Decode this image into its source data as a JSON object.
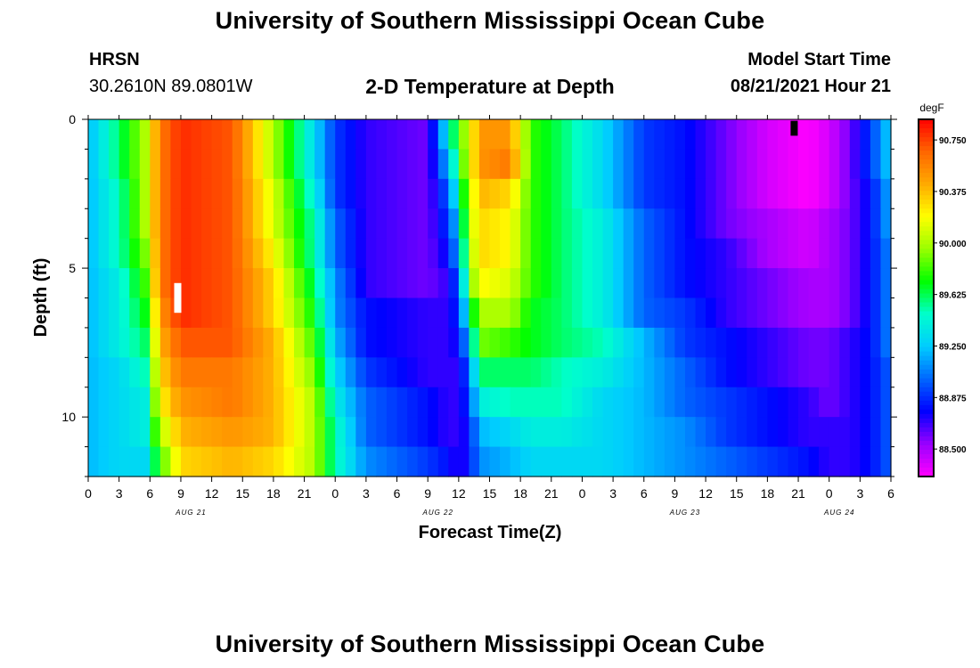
{
  "header": {
    "title": "University of Southern Mississippi Ocean Cube",
    "station": "HRSN",
    "coords": "30.2610N  89.0801W",
    "subtitle": "2-D Temperature at Depth",
    "model_start_label": "Model Start Time",
    "model_start_value": "08/21/2021 Hour 21"
  },
  "footer": {
    "title": "University of Southern Mississippi Ocean Cube"
  },
  "chart_data": {
    "type": "heatmap",
    "xlabel": "Forecast Time(Z)",
    "ylabel": "Depth (ft)",
    "x_hours": [
      0,
      3,
      6,
      9,
      12,
      15,
      18,
      21,
      0,
      3,
      6,
      9,
      12,
      15,
      18,
      21,
      0,
      3,
      6,
      9,
      12,
      15,
      18,
      21,
      0,
      3,
      6
    ],
    "date_labels": [
      {
        "label": "AUG 21",
        "hours_from_start": 10
      },
      {
        "label": "AUG 22",
        "hours_from_start": 34
      },
      {
        "label": "AUG 23",
        "hours_from_start": 58
      },
      {
        "label": "AUG 24",
        "hours_from_start": 73
      }
    ],
    "xlim_hours": [
      0,
      78
    ],
    "ylim_ft": [
      0,
      12
    ],
    "y_ticks_labeled": [
      0,
      5,
      10
    ],
    "colorbar": {
      "unit": "degF",
      "tick_labels": [
        "90.750",
        "90.375",
        "90.000",
        "89.625",
        "89.250",
        "88.875",
        "88.500"
      ],
      "tick_values": [
        90.75,
        90.375,
        90.0,
        89.625,
        89.25,
        88.875,
        88.5
      ],
      "range": [
        88.3,
        90.9
      ],
      "colors": [
        "#ff00ff",
        "#9900ff",
        "#0000ff",
        "#0066ff",
        "#00ccff",
        "#00ffcc",
        "#00ff00",
        "#99ff00",
        "#ffff00",
        "#ffaa00",
        "#ff6600",
        "#ff0000"
      ]
    },
    "depth_rows_ft": [
      0.5,
      1.5,
      2.5,
      3.5,
      4.5,
      5.5,
      6.5,
      7.5,
      8.5,
      9.5,
      10.5,
      11.5
    ],
    "time_knots_hours": [
      0,
      3,
      5.5,
      7,
      9,
      14,
      18,
      22,
      24,
      27,
      33,
      35,
      36,
      37,
      38,
      41,
      43,
      46,
      50,
      54,
      58,
      62,
      66,
      70,
      72,
      74,
      76,
      78
    ],
    "temperature_grid_degF": [
      [
        89.2,
        89.6,
        90.0,
        90.6,
        90.8,
        90.7,
        90.0,
        89.3,
        88.9,
        88.7,
        88.6,
        89.4,
        89.8,
        90.1,
        90.5,
        90.5,
        89.8,
        89.6,
        89.3,
        88.9,
        88.8,
        88.6,
        88.4,
        88.3,
        88.4,
        88.6,
        88.9,
        89.3
      ],
      [
        89.2,
        89.6,
        90.0,
        90.6,
        90.8,
        90.7,
        90.0,
        89.3,
        88.9,
        88.7,
        88.6,
        89.2,
        89.7,
        90.1,
        90.5,
        90.6,
        89.8,
        89.6,
        89.3,
        88.9,
        88.8,
        88.6,
        88.4,
        88.3,
        88.4,
        88.6,
        88.9,
        89.3
      ],
      [
        89.2,
        89.5,
        90.0,
        90.6,
        90.8,
        90.7,
        90.1,
        89.4,
        88.9,
        88.7,
        88.6,
        89.0,
        89.5,
        90.0,
        90.4,
        90.3,
        89.8,
        89.6,
        89.3,
        88.9,
        88.8,
        88.6,
        88.4,
        88.3,
        88.4,
        88.6,
        88.8,
        89.2
      ],
      [
        89.2,
        89.5,
        90.0,
        90.6,
        90.8,
        90.7,
        90.1,
        89.5,
        89.0,
        88.7,
        88.6,
        88.9,
        89.3,
        90.0,
        90.3,
        90.2,
        89.8,
        89.6,
        89.4,
        89.0,
        88.8,
        88.6,
        88.5,
        88.4,
        88.5,
        88.6,
        88.8,
        89.2
      ],
      [
        89.2,
        89.5,
        89.9,
        90.6,
        90.8,
        90.7,
        90.2,
        89.5,
        89.0,
        88.7,
        88.6,
        88.8,
        89.2,
        89.9,
        90.3,
        90.2,
        89.8,
        89.6,
        89.4,
        89.0,
        88.8,
        88.7,
        88.5,
        88.4,
        88.5,
        88.6,
        88.8,
        89.1
      ],
      [
        89.2,
        89.4,
        89.8,
        90.6,
        90.8,
        90.7,
        90.3,
        89.6,
        89.1,
        88.7,
        88.6,
        88.7,
        89.0,
        89.8,
        90.2,
        90.1,
        89.8,
        89.6,
        89.4,
        89.0,
        88.8,
        88.7,
        88.6,
        88.5,
        88.5,
        88.6,
        88.8,
        89.1
      ],
      [
        89.2,
        89.4,
        89.7,
        90.5,
        90.8,
        90.7,
        90.3,
        89.7,
        89.1,
        88.8,
        88.7,
        88.7,
        88.9,
        89.5,
        90.0,
        90.0,
        89.7,
        89.6,
        89.4,
        89.0,
        88.9,
        88.7,
        88.6,
        88.5,
        88.5,
        88.6,
        88.8,
        89.1
      ],
      [
        89.2,
        89.4,
        89.6,
        90.4,
        90.7,
        90.7,
        90.4,
        89.8,
        89.2,
        88.8,
        88.7,
        88.7,
        88.8,
        89.2,
        89.9,
        89.8,
        89.7,
        89.6,
        89.5,
        89.2,
        88.9,
        88.8,
        88.7,
        88.6,
        88.6,
        88.7,
        88.8,
        89.1
      ],
      [
        89.2,
        89.3,
        89.5,
        90.3,
        90.6,
        90.6,
        90.4,
        89.9,
        89.3,
        88.9,
        88.7,
        88.7,
        88.7,
        89.0,
        89.6,
        89.6,
        89.6,
        89.5,
        89.4,
        89.2,
        89.0,
        88.8,
        88.7,
        88.6,
        88.6,
        88.7,
        88.8,
        89.0
      ],
      [
        89.2,
        89.3,
        89.4,
        90.2,
        90.5,
        90.6,
        90.4,
        90.0,
        89.4,
        89.0,
        88.8,
        88.7,
        88.7,
        88.9,
        89.4,
        89.5,
        89.5,
        89.5,
        89.3,
        89.2,
        89.0,
        88.9,
        88.8,
        88.7,
        88.6,
        88.7,
        88.8,
        89.0
      ],
      [
        89.2,
        89.3,
        89.4,
        90.0,
        90.4,
        90.5,
        90.4,
        90.0,
        89.5,
        89.0,
        88.8,
        88.7,
        88.7,
        88.8,
        89.2,
        89.3,
        89.4,
        89.4,
        89.3,
        89.2,
        89.1,
        88.9,
        88.8,
        88.7,
        88.7,
        88.7,
        88.8,
        89.0
      ],
      [
        89.2,
        89.3,
        89.3,
        89.8,
        90.3,
        90.4,
        90.3,
        90.0,
        89.5,
        89.1,
        88.9,
        88.8,
        88.7,
        88.8,
        89.1,
        89.2,
        89.3,
        89.3,
        89.3,
        89.2,
        89.1,
        89.0,
        88.9,
        88.8,
        88.7,
        88.7,
        88.8,
        89.0
      ]
    ],
    "markers": [
      {
        "color": "#ffffff",
        "x_hours": 8.7,
        "depth_ft": [
          5.5,
          6.5
        ]
      },
      {
        "color": "#000000",
        "x_hours": 68.6,
        "depth_ft": [
          0.05,
          0.55
        ]
      }
    ]
  }
}
